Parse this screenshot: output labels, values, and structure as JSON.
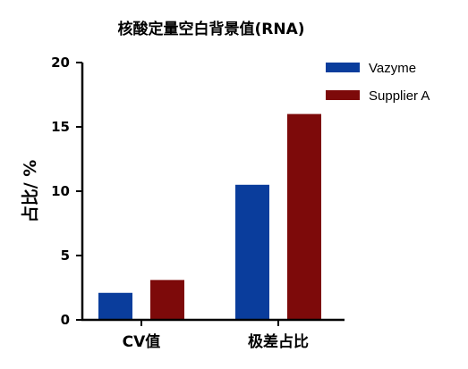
{
  "chart_data": {
    "type": "bar",
    "title": "核酸定量空白背景值(RNA)",
    "xlabel": "",
    "ylabel": "占比/ %",
    "categories": [
      "CV值",
      "极差占比"
    ],
    "series": [
      {
        "name": "Vazyme",
        "values": [
          2.1,
          10.5
        ],
        "color": "#0a3d9c"
      },
      {
        "name": "Supplier A",
        "values": [
          3.1,
          16.0
        ],
        "color": "#7d0a0a"
      }
    ],
    "ylim": [
      0,
      20
    ],
    "yticks": [
      0,
      5,
      10,
      15,
      20
    ],
    "grid": false,
    "legend_position": "top-right"
  }
}
